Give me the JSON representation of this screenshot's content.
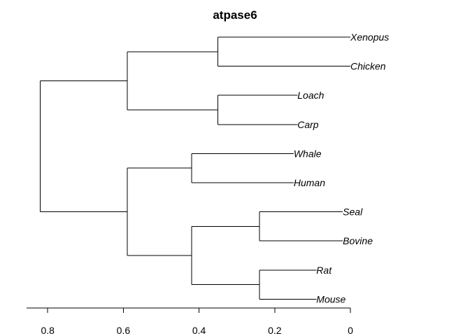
{
  "chart_data": {
    "type": "dendrogram",
    "title": "atpase6",
    "xlim": [
      0.85,
      0
    ],
    "xticks": [
      0.8,
      0.6,
      0.4,
      0.2,
      0
    ],
    "xtick_labels": [
      "0.8",
      "0.6",
      "0.4",
      "0.2",
      "0"
    ],
    "leaves": [
      {
        "name": "Xenopus",
        "height": 0.0
      },
      {
        "name": "Chicken",
        "height": 0.0
      },
      {
        "name": "Loach",
        "height": 0.14
      },
      {
        "name": "Carp",
        "height": 0.14
      },
      {
        "name": "Whale",
        "height": 0.15
      },
      {
        "name": "Human",
        "height": 0.15
      },
      {
        "name": "Seal",
        "height": 0.02
      },
      {
        "name": "Bovine",
        "height": 0.02
      },
      {
        "name": "Rat",
        "height": 0.09
      },
      {
        "name": "Mouse",
        "height": 0.09
      }
    ],
    "merges": [
      {
        "id": "m1",
        "children": [
          "Xenopus",
          "Chicken"
        ],
        "height": 0.35
      },
      {
        "id": "m2",
        "children": [
          "Loach",
          "Carp"
        ],
        "height": 0.35
      },
      {
        "id": "m3",
        "children": [
          "m1",
          "m2"
        ],
        "height": 0.59
      },
      {
        "id": "m4",
        "children": [
          "Whale",
          "Human"
        ],
        "height": 0.42
      },
      {
        "id": "m5",
        "children": [
          "Seal",
          "Bovine"
        ],
        "height": 0.24
      },
      {
        "id": "m6",
        "children": [
          "Rat",
          "Mouse"
        ],
        "height": 0.24
      },
      {
        "id": "m7",
        "children": [
          "m5",
          "m6"
        ],
        "height": 0.42
      },
      {
        "id": "m8",
        "children": [
          "m4",
          "m7"
        ],
        "height": 0.59
      },
      {
        "id": "root",
        "children": [
          "m3",
          "m8"
        ],
        "height": 0.82
      }
    ]
  }
}
